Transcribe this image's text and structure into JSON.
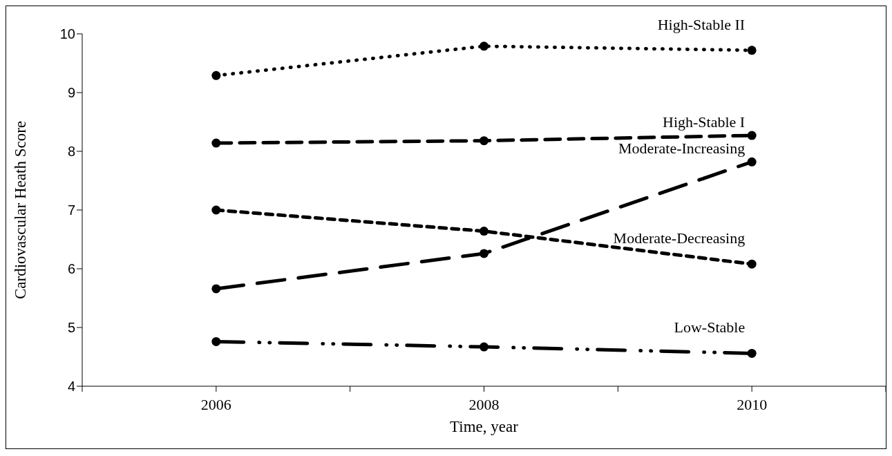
{
  "chart_data": {
    "type": "line",
    "xlabel": "Time, year",
    "ylabel": "Cardiovascular Heath Score",
    "x": [
      2006,
      2008,
      2010
    ],
    "xlim": [
      2005,
      2011
    ],
    "xticks": [
      {
        "value": 2005,
        "label": null
      },
      2006,
      {
        "value": 2007,
        "label": null
      },
      2008,
      {
        "value": 2009,
        "label": null
      },
      2010,
      {
        "value": 2011,
        "label": null
      }
    ],
    "ylim": [
      4,
      10
    ],
    "yticks": [
      4,
      5,
      6,
      7,
      8,
      9,
      10
    ],
    "grid": false,
    "legend": false,
    "marker": "circle",
    "series": [
      {
        "name": "High-Stable II",
        "color": "#000000",
        "line_style": "dotted",
        "values": [
          9.29,
          9.79,
          9.72
        ]
      },
      {
        "name": "High-Stable I",
        "color": "#000000",
        "line_style": "dashed",
        "values": [
          8.14,
          8.18,
          8.27
        ]
      },
      {
        "name": "Moderate-Increasing",
        "color": "#000000",
        "line_style": "dashed",
        "values": [
          5.66,
          6.26,
          7.82
        ]
      },
      {
        "name": "Moderate-Decreasing",
        "color": "#000000",
        "line_style": "dashed",
        "values": [
          7.0,
          6.64,
          6.08
        ]
      },
      {
        "name": "Low-Stable",
        "color": "#000000",
        "line_style": "dashed",
        "values": [
          4.76,
          4.67,
          4.56
        ]
      }
    ]
  }
}
